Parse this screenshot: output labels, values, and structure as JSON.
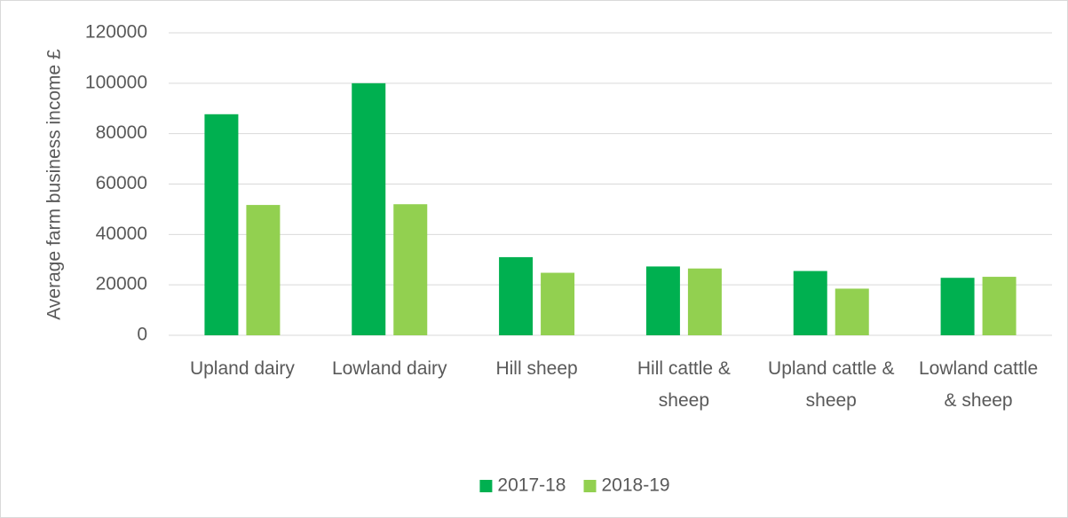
{
  "chart_data": {
    "type": "bar",
    "y_axis_label": "Average farm business income £",
    "categories": [
      "Upland dairy",
      "Lowland dairy",
      "Hill sheep",
      "Hill cattle & sheep",
      "Upland cattle & sheep",
      "Lowland cattle & sheep"
    ],
    "series": [
      {
        "name": "2017-18",
        "color": "#00b050",
        "values": [
          87700,
          100000,
          31000,
          27300,
          25500,
          22800
        ]
      },
      {
        "name": "2018-19",
        "color": "#92d050",
        "values": [
          51700,
          52000,
          24800,
          26500,
          18500,
          23200
        ]
      }
    ],
    "ylim": [
      0,
      120000
    ],
    "yticks": [
      0,
      20000,
      40000,
      60000,
      80000,
      100000,
      120000
    ],
    "grid": true,
    "legend": "bottom"
  }
}
